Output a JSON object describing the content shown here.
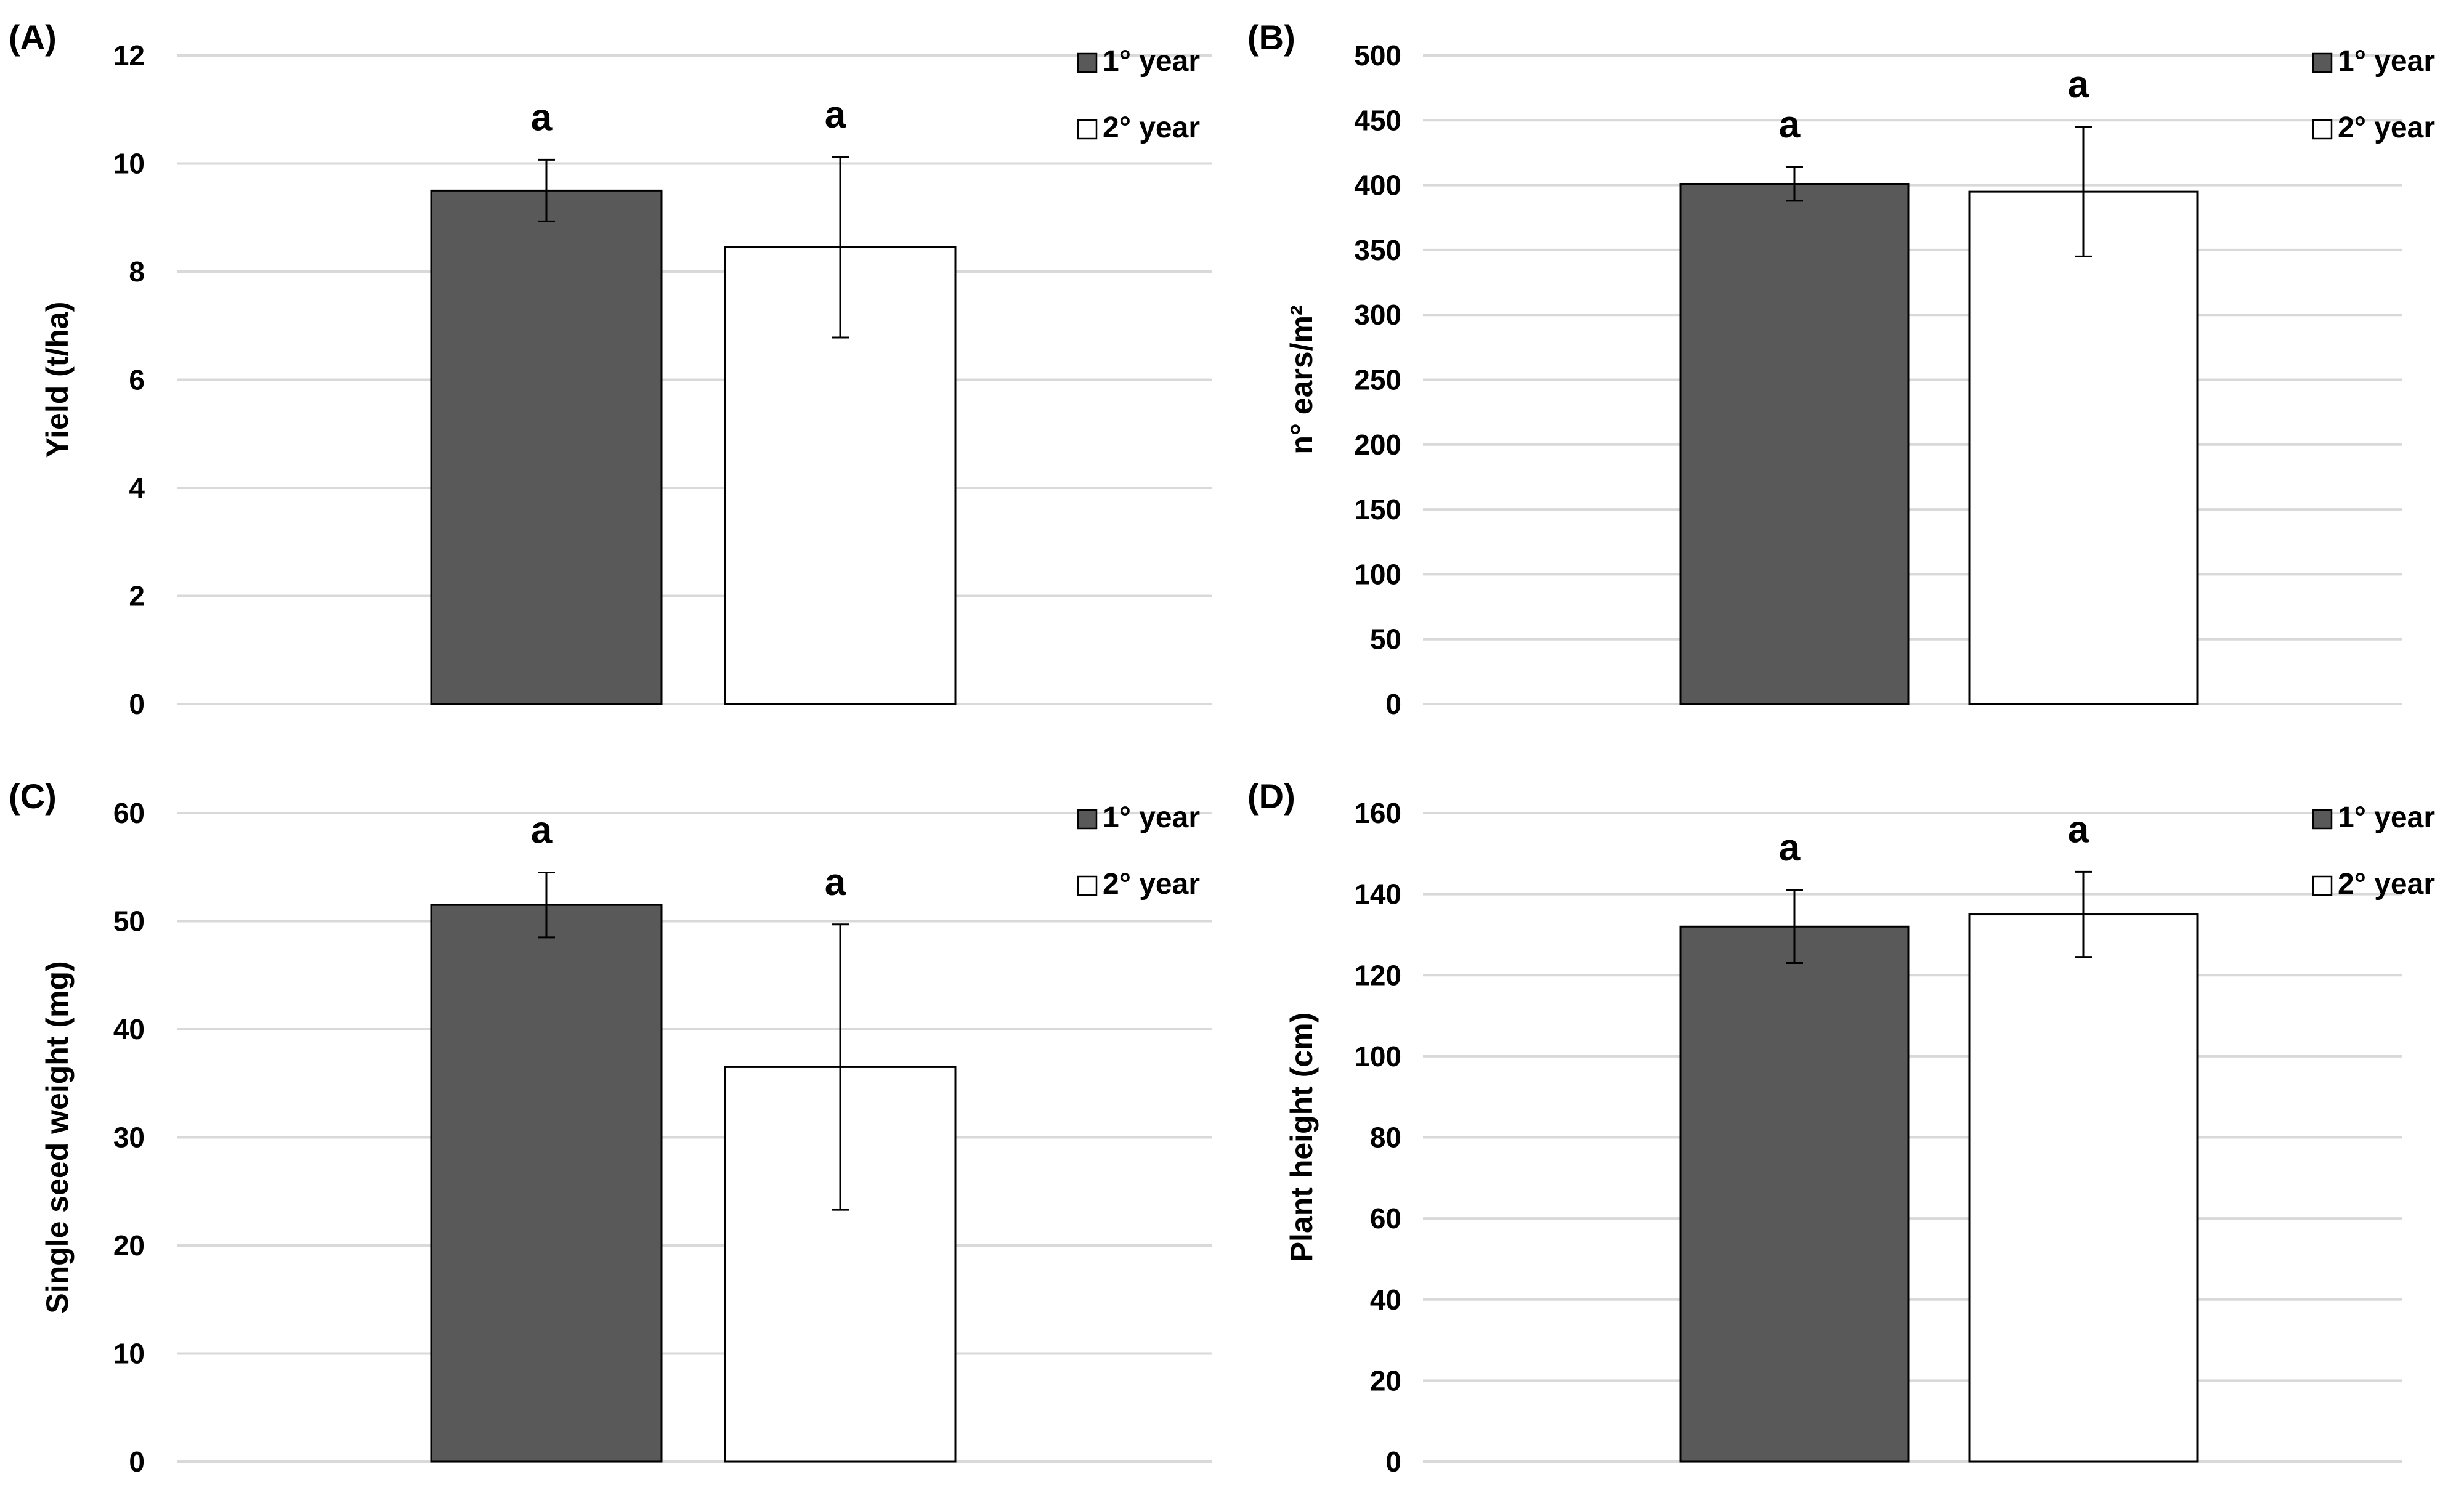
{
  "colors": {
    "year1": "#595959",
    "year2": "#ffffff",
    "grid": "#d9d9d9",
    "stroke": "#000000"
  },
  "chart_data": [
    {
      "type": "bar",
      "panel_label": "(A)",
      "ylabel": "Yield (t/ha)",
      "ylim": [
        0,
        12
      ],
      "yticks": [
        "0",
        "2",
        "4",
        "6",
        "8",
        "10",
        "12"
      ],
      "series": [
        {
          "name": "1° year",
          "value": 9.5,
          "error": 0.57,
          "sig": "a"
        },
        {
          "name": "2° year",
          "value": 8.45,
          "error": 1.67,
          "sig": "a"
        }
      ]
    },
    {
      "type": "bar",
      "panel_label": "(B)",
      "ylabel": "n° ears/m²",
      "ylim": [
        0,
        500
      ],
      "yticks": [
        "0",
        "50",
        "100",
        "150",
        "200",
        "250",
        "300",
        "350",
        "400",
        "450",
        "500"
      ],
      "series": [
        {
          "name": "1° year",
          "value": 401,
          "error": 13,
          "sig": "a"
        },
        {
          "name": "2° year",
          "value": 395,
          "error": 50,
          "sig": "a"
        }
      ]
    },
    {
      "type": "bar",
      "panel_label": "(C)",
      "ylabel": "Single seed weight (mg)",
      "ylim": [
        0,
        60
      ],
      "yticks": [
        "0",
        "10",
        "20",
        "30",
        "40",
        "50",
        "60"
      ],
      "series": [
        {
          "name": "1° year",
          "value": 51.5,
          "error": 3.0,
          "sig": "a"
        },
        {
          "name": "2° year",
          "value": 36.5,
          "error": 13.2,
          "sig": "a"
        }
      ]
    },
    {
      "type": "bar",
      "panel_label": "(D)",
      "ylabel": "Plant height (cm)",
      "ylim": [
        0,
        160
      ],
      "yticks": [
        "0",
        "20",
        "40",
        "60",
        "80",
        "100",
        "120",
        "140",
        "160"
      ],
      "series": [
        {
          "name": "1° year",
          "value": 132,
          "error": 9,
          "sig": "a"
        },
        {
          "name": "2° year",
          "value": 135,
          "error": 10.5,
          "sig": "a"
        }
      ]
    }
  ]
}
